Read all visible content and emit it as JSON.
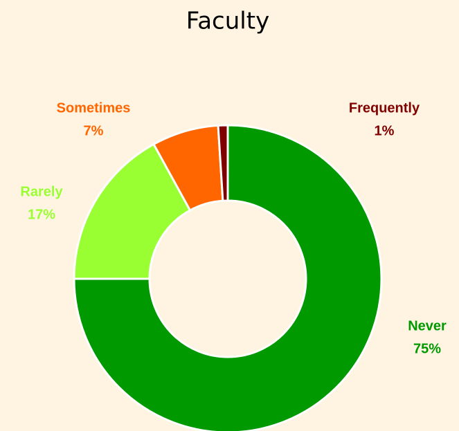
{
  "chart_data": {
    "type": "pie",
    "title": "Faculty",
    "categories": [
      "Never",
      "Rarely",
      "Sometimes",
      "Frequently"
    ],
    "values": [
      75,
      17,
      7,
      1
    ],
    "value_labels": [
      "75%",
      "17%",
      "7%",
      "1%"
    ],
    "colors": [
      "#009900",
      "#99ff33",
      "#ff6600",
      "#800000"
    ]
  }
}
